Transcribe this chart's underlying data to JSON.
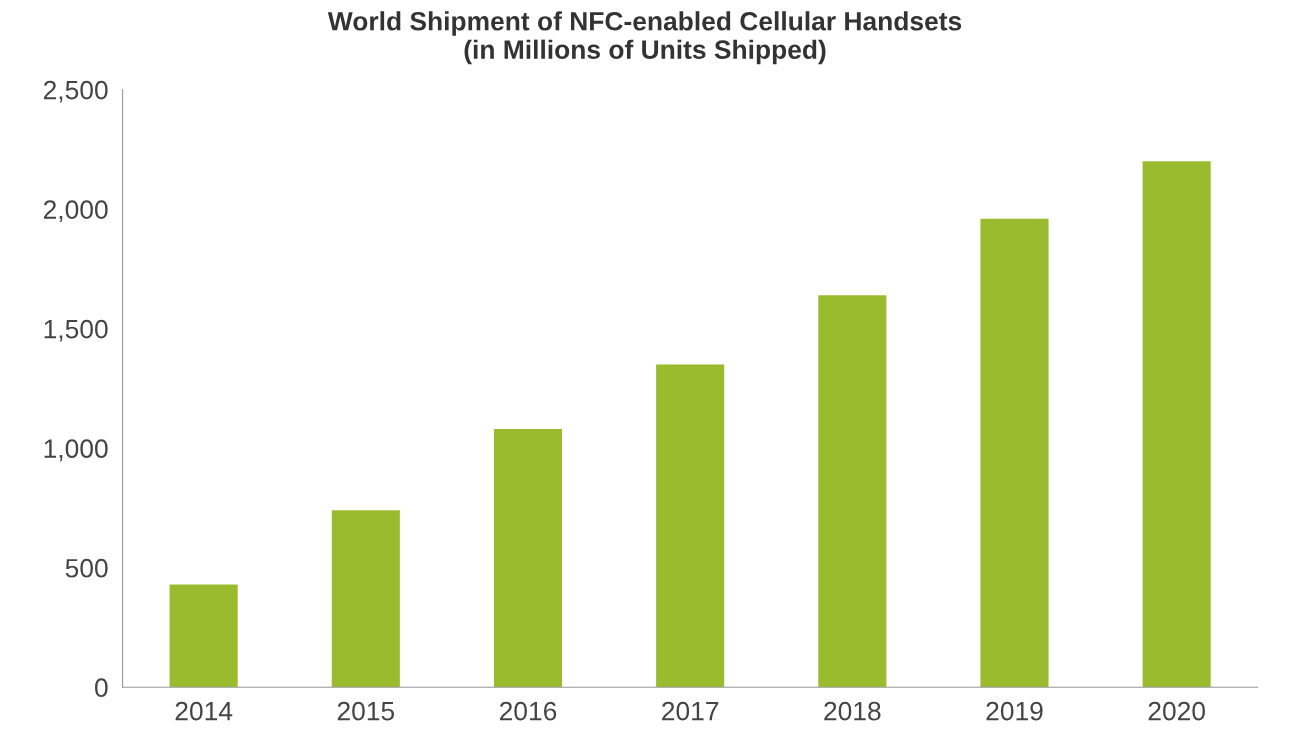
{
  "chart_data": {
    "type": "bar",
    "title": "World Shipment of NFC-enabled Cellular Handsets\n(in Millions of Units Shipped)",
    "categories": [
      "2014",
      "2015",
      "2016",
      "2017",
      "2018",
      "2019",
      "2020"
    ],
    "values": [
      430,
      740,
      1080,
      1350,
      1640,
      1960,
      2200
    ],
    "color": "#9bbb2f",
    "ylim": [
      0,
      2500
    ],
    "yticks": [
      {
        "value": 0,
        "label": "0"
      },
      {
        "value": 500,
        "label": "500"
      },
      {
        "value": 1000,
        "label": "1,000"
      },
      {
        "value": 1500,
        "label": "1,500"
      },
      {
        "value": 2000,
        "label": "2,000"
      },
      {
        "value": 2500,
        "label": "2,500"
      }
    ],
    "grid": false
  }
}
